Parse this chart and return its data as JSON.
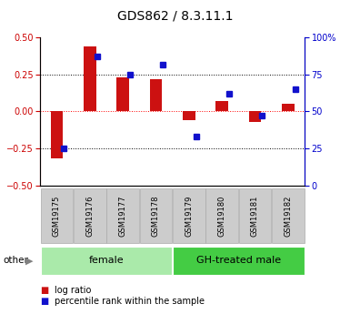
{
  "title": "GDS862 / 8.3.11.1",
  "samples": [
    "GSM19175",
    "GSM19176",
    "GSM19177",
    "GSM19178",
    "GSM19179",
    "GSM19180",
    "GSM19181",
    "GSM19182"
  ],
  "log_ratio": [
    -0.32,
    0.44,
    0.23,
    0.22,
    -0.06,
    0.07,
    -0.07,
    0.05
  ],
  "percentile_rank": [
    25,
    87,
    75,
    82,
    33,
    62,
    47,
    65
  ],
  "groups": [
    {
      "label": "female",
      "indices": [
        0,
        1,
        2,
        3
      ],
      "color": "#aaeaaa"
    },
    {
      "label": "GH-treated male",
      "indices": [
        4,
        5,
        6,
        7
      ],
      "color": "#44cc44"
    }
  ],
  "ylim_left": [
    -0.5,
    0.5
  ],
  "ylim_right": [
    0,
    100
  ],
  "left_ticks": [
    -0.5,
    -0.25,
    0,
    0.25,
    0.5
  ],
  "right_ticks": [
    0,
    25,
    50,
    75,
    100
  ],
  "dotted_lines_black": [
    -0.25,
    0.25
  ],
  "zero_line_color": "red",
  "bar_color": "#cc1111",
  "scatter_color": "#1111cc",
  "left_label_color": "#cc0000",
  "right_label_color": "#0000cc",
  "sample_box_color": "#cccccc",
  "sample_box_edge": "#aaaaaa",
  "other_label": "other"
}
